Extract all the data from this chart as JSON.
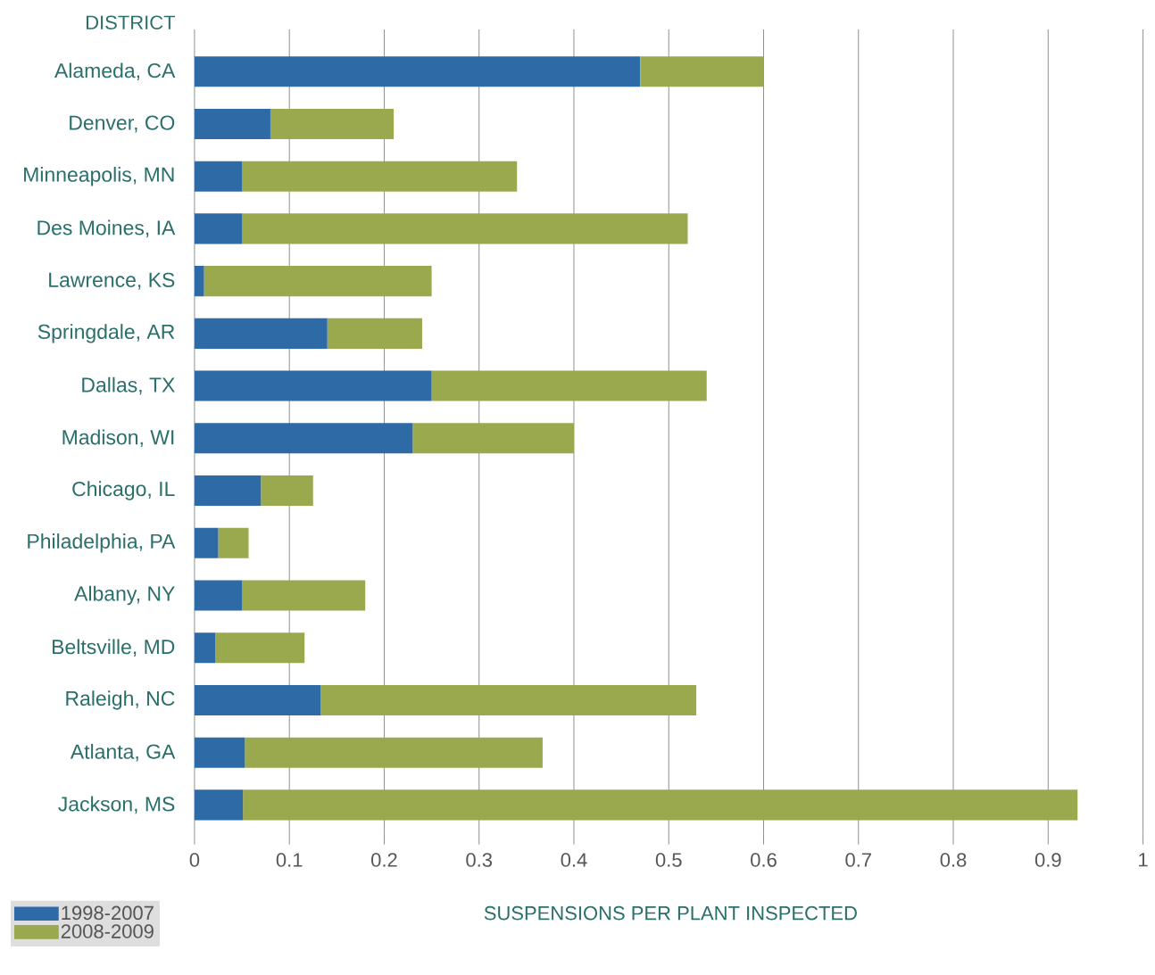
{
  "chart_data": {
    "type": "bar",
    "orientation": "horizontal",
    "stacked": true,
    "ylabel": "DISTRICT",
    "xlabel": "SUSPENSIONS PER PLANT INSPECTED",
    "categories": [
      "Alameda, CA",
      "Denver, CO",
      "Minneapolis, MN",
      "Des Moines, IA",
      "Lawrence, KS",
      "Springdale, AR",
      "Dallas, TX",
      "Madison, WI",
      "Chicago, IL",
      "Philadelphia, PA",
      "Albany, NY",
      "Beltsville, MD",
      "Raleigh, NC",
      "Atlanta, GA",
      "Jackson, MS"
    ],
    "series": [
      {
        "name": "1998-2007",
        "color": "#2e6aa6",
        "values": [
          0.47,
          0.08,
          0.05,
          0.05,
          0.01,
          0.14,
          0.25,
          0.23,
          0.07,
          0.025,
          0.05,
          0.022,
          0.133,
          0.053,
          0.051
        ]
      },
      {
        "name": "2008-2009",
        "color": "#9aa84e",
        "values": [
          0.13,
          0.13,
          0.29,
          0.47,
          0.24,
          0.1,
          0.29,
          0.17,
          0.055,
          0.032,
          0.13,
          0.094,
          0.396,
          0.314,
          0.88
        ]
      }
    ],
    "xlim": [
      0,
      1
    ],
    "xticks": [
      0,
      0.1,
      0.2,
      0.3,
      0.4,
      0.5,
      0.6,
      0.7,
      0.8,
      0.9,
      1
    ],
    "grid": "x",
    "legend": "bottom left"
  }
}
